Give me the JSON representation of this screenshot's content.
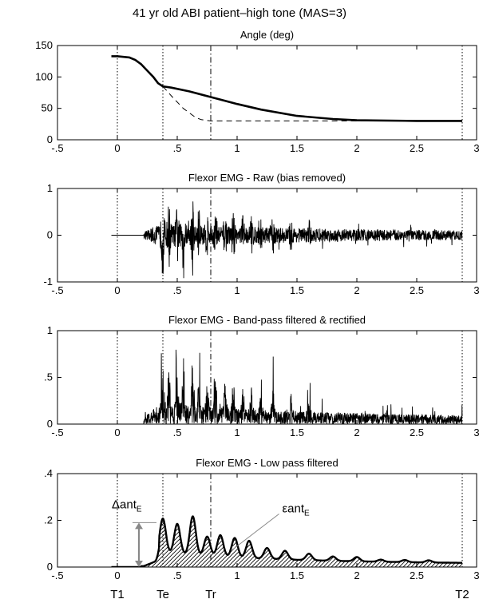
{
  "title": "41 yr old ABI patient–high tone (MAS=3)",
  "events": [
    {
      "label": "T1",
      "t": 0.0,
      "style": "dotted"
    },
    {
      "label": "Te",
      "t": 0.38,
      "style": "dotted"
    },
    {
      "label": "Tr",
      "t": 0.78,
      "style": "dashdot"
    },
    {
      "label": "T2",
      "t": 2.88,
      "style": "dotted"
    }
  ],
  "annotations": {
    "delta": {
      "prefix": "Δant",
      "sub": "E",
      "y_low": 0.0,
      "y_high": 0.19,
      "t": 0.18
    },
    "epsilon": {
      "prefix": "εant",
      "sub": "E",
      "t": 0.95,
      "y": 0.07
    }
  },
  "chart_data": [
    {
      "type": "line",
      "title": "Angle (deg)",
      "xlim": [
        -0.5,
        3
      ],
      "ylim": [
        0,
        150
      ],
      "xticks": [
        -0.5,
        0,
        0.5,
        1,
        1.5,
        2,
        2.5,
        3
      ],
      "yticks": [
        0,
        50,
        100,
        150
      ],
      "series": [
        {
          "style": "thick-solid",
          "x": [
            -0.05,
            0,
            0.1,
            0.15,
            0.2,
            0.25,
            0.3,
            0.34,
            0.38,
            0.45,
            0.6,
            0.78,
            1.0,
            1.2,
            1.5,
            1.8,
            2.0,
            2.5,
            2.88
          ],
          "y": [
            133,
            133,
            131,
            127,
            120,
            110,
            100,
            90,
            85,
            83,
            77,
            68,
            57,
            48,
            38,
            33,
            31,
            30,
            30
          ]
        },
        {
          "style": "dashed",
          "x": [
            0.38,
            0.45,
            0.55,
            0.65,
            0.7,
            0.78,
            1.0,
            1.5,
            2.0,
            2.88
          ],
          "y": [
            85,
            70,
            50,
            36,
            32,
            30,
            30,
            30,
            30,
            30
          ]
        }
      ]
    },
    {
      "type": "line",
      "title": "Flexor EMG - Raw (bias removed)",
      "xlim": [
        -0.5,
        3
      ],
      "ylim": [
        -1,
        1
      ],
      "xticks": [
        -0.5,
        0,
        0.5,
        1,
        1.5,
        2,
        2.5,
        3
      ],
      "yticks": [
        -1,
        0,
        1
      ],
      "signal": "emg-raw",
      "t_range": [
        -0.05,
        2.88
      ],
      "onset": 0.22
    },
    {
      "type": "line",
      "title": "Flexor EMG - Band-pass filtered & rectified",
      "xlim": [
        -0.5,
        3
      ],
      "ylim": [
        0,
        1
      ],
      "xticks": [
        -0.5,
        0,
        0.5,
        1,
        1.5,
        2,
        2.5,
        3
      ],
      "yticks": [
        0,
        0.5,
        1
      ],
      "signal": "emg-rectified",
      "t_range": [
        -0.05,
        2.88
      ],
      "onset": 0.22
    },
    {
      "type": "area",
      "title": "Flexor EMG - Low pass filtered",
      "xlim": [
        -0.5,
        3
      ],
      "ylim": [
        0,
        0.4
      ],
      "xticks": [
        -0.5,
        0,
        0.5,
        1,
        1.5,
        2,
        2.5,
        3
      ],
      "yticks": [
        0,
        0.2,
        0.4
      ],
      "signal": "emg-lowpass",
      "peaks": [
        {
          "t": 0.38,
          "y": 0.19
        },
        {
          "t": 0.5,
          "y": 0.17
        },
        {
          "t": 0.63,
          "y": 0.21
        },
        {
          "t": 0.75,
          "y": 0.12
        },
        {
          "t": 0.86,
          "y": 0.13
        },
        {
          "t": 0.98,
          "y": 0.12
        },
        {
          "t": 1.1,
          "y": 0.11
        },
        {
          "t": 1.25,
          "y": 0.08
        },
        {
          "t": 1.4,
          "y": 0.07
        },
        {
          "t": 1.6,
          "y": 0.06
        },
        {
          "t": 1.8,
          "y": 0.05
        },
        {
          "t": 2.0,
          "y": 0.05
        },
        {
          "t": 2.2,
          "y": 0.04
        },
        {
          "t": 2.4,
          "y": 0.04
        },
        {
          "t": 2.6,
          "y": 0.04
        },
        {
          "t": 2.85,
          "y": 0.03
        }
      ]
    }
  ]
}
